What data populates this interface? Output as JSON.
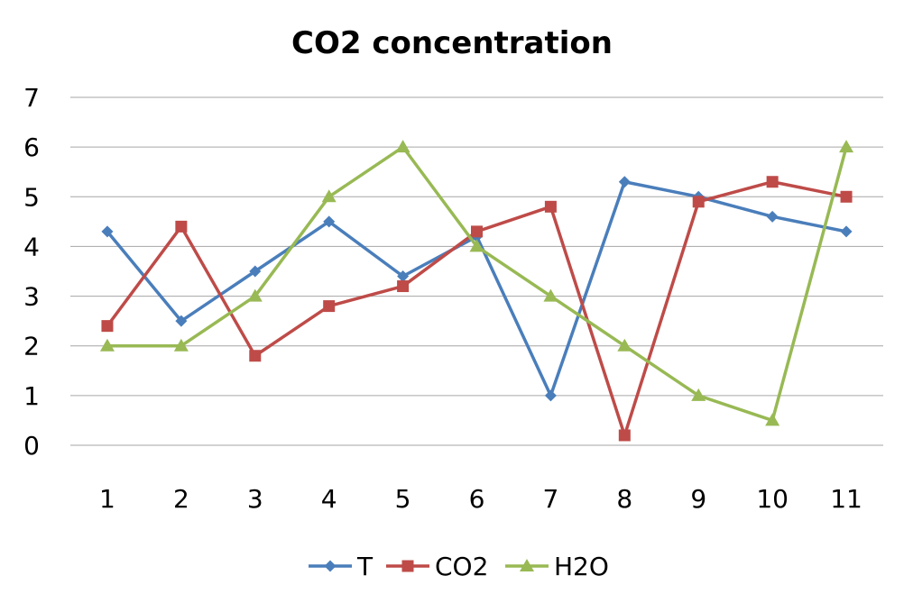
{
  "chart_data": {
    "type": "line",
    "title": "CO2 concentration",
    "xlabel": "",
    "ylabel": "",
    "categories": [
      "1",
      "2",
      "3",
      "4",
      "5",
      "6",
      "7",
      "8",
      "9",
      "10",
      "11"
    ],
    "y_ticks": [
      "0",
      "1",
      "2",
      "3",
      "4",
      "5",
      "6",
      "7"
    ],
    "ylim": [
      0,
      7
    ],
    "grid": true,
    "legend_position": "bottom",
    "series": [
      {
        "name": "T",
        "color": "#4a7ebb",
        "marker": "diamond",
        "values": [
          4.3,
          2.5,
          3.5,
          4.5,
          3.4,
          4.2,
          1.0,
          5.3,
          5.0,
          4.6,
          4.3
        ]
      },
      {
        "name": "CO2",
        "color": "#be4b48",
        "marker": "square",
        "values": [
          2.4,
          4.4,
          1.8,
          2.8,
          3.2,
          4.3,
          4.8,
          0.2,
          4.9,
          5.3,
          5.0
        ]
      },
      {
        "name": "H2O",
        "color": "#98b954",
        "marker": "triangle",
        "values": [
          2.0,
          2.0,
          3.0,
          5.0,
          6.0,
          4.0,
          3.0,
          2.0,
          1.0,
          0.5,
          6.0
        ]
      }
    ]
  }
}
